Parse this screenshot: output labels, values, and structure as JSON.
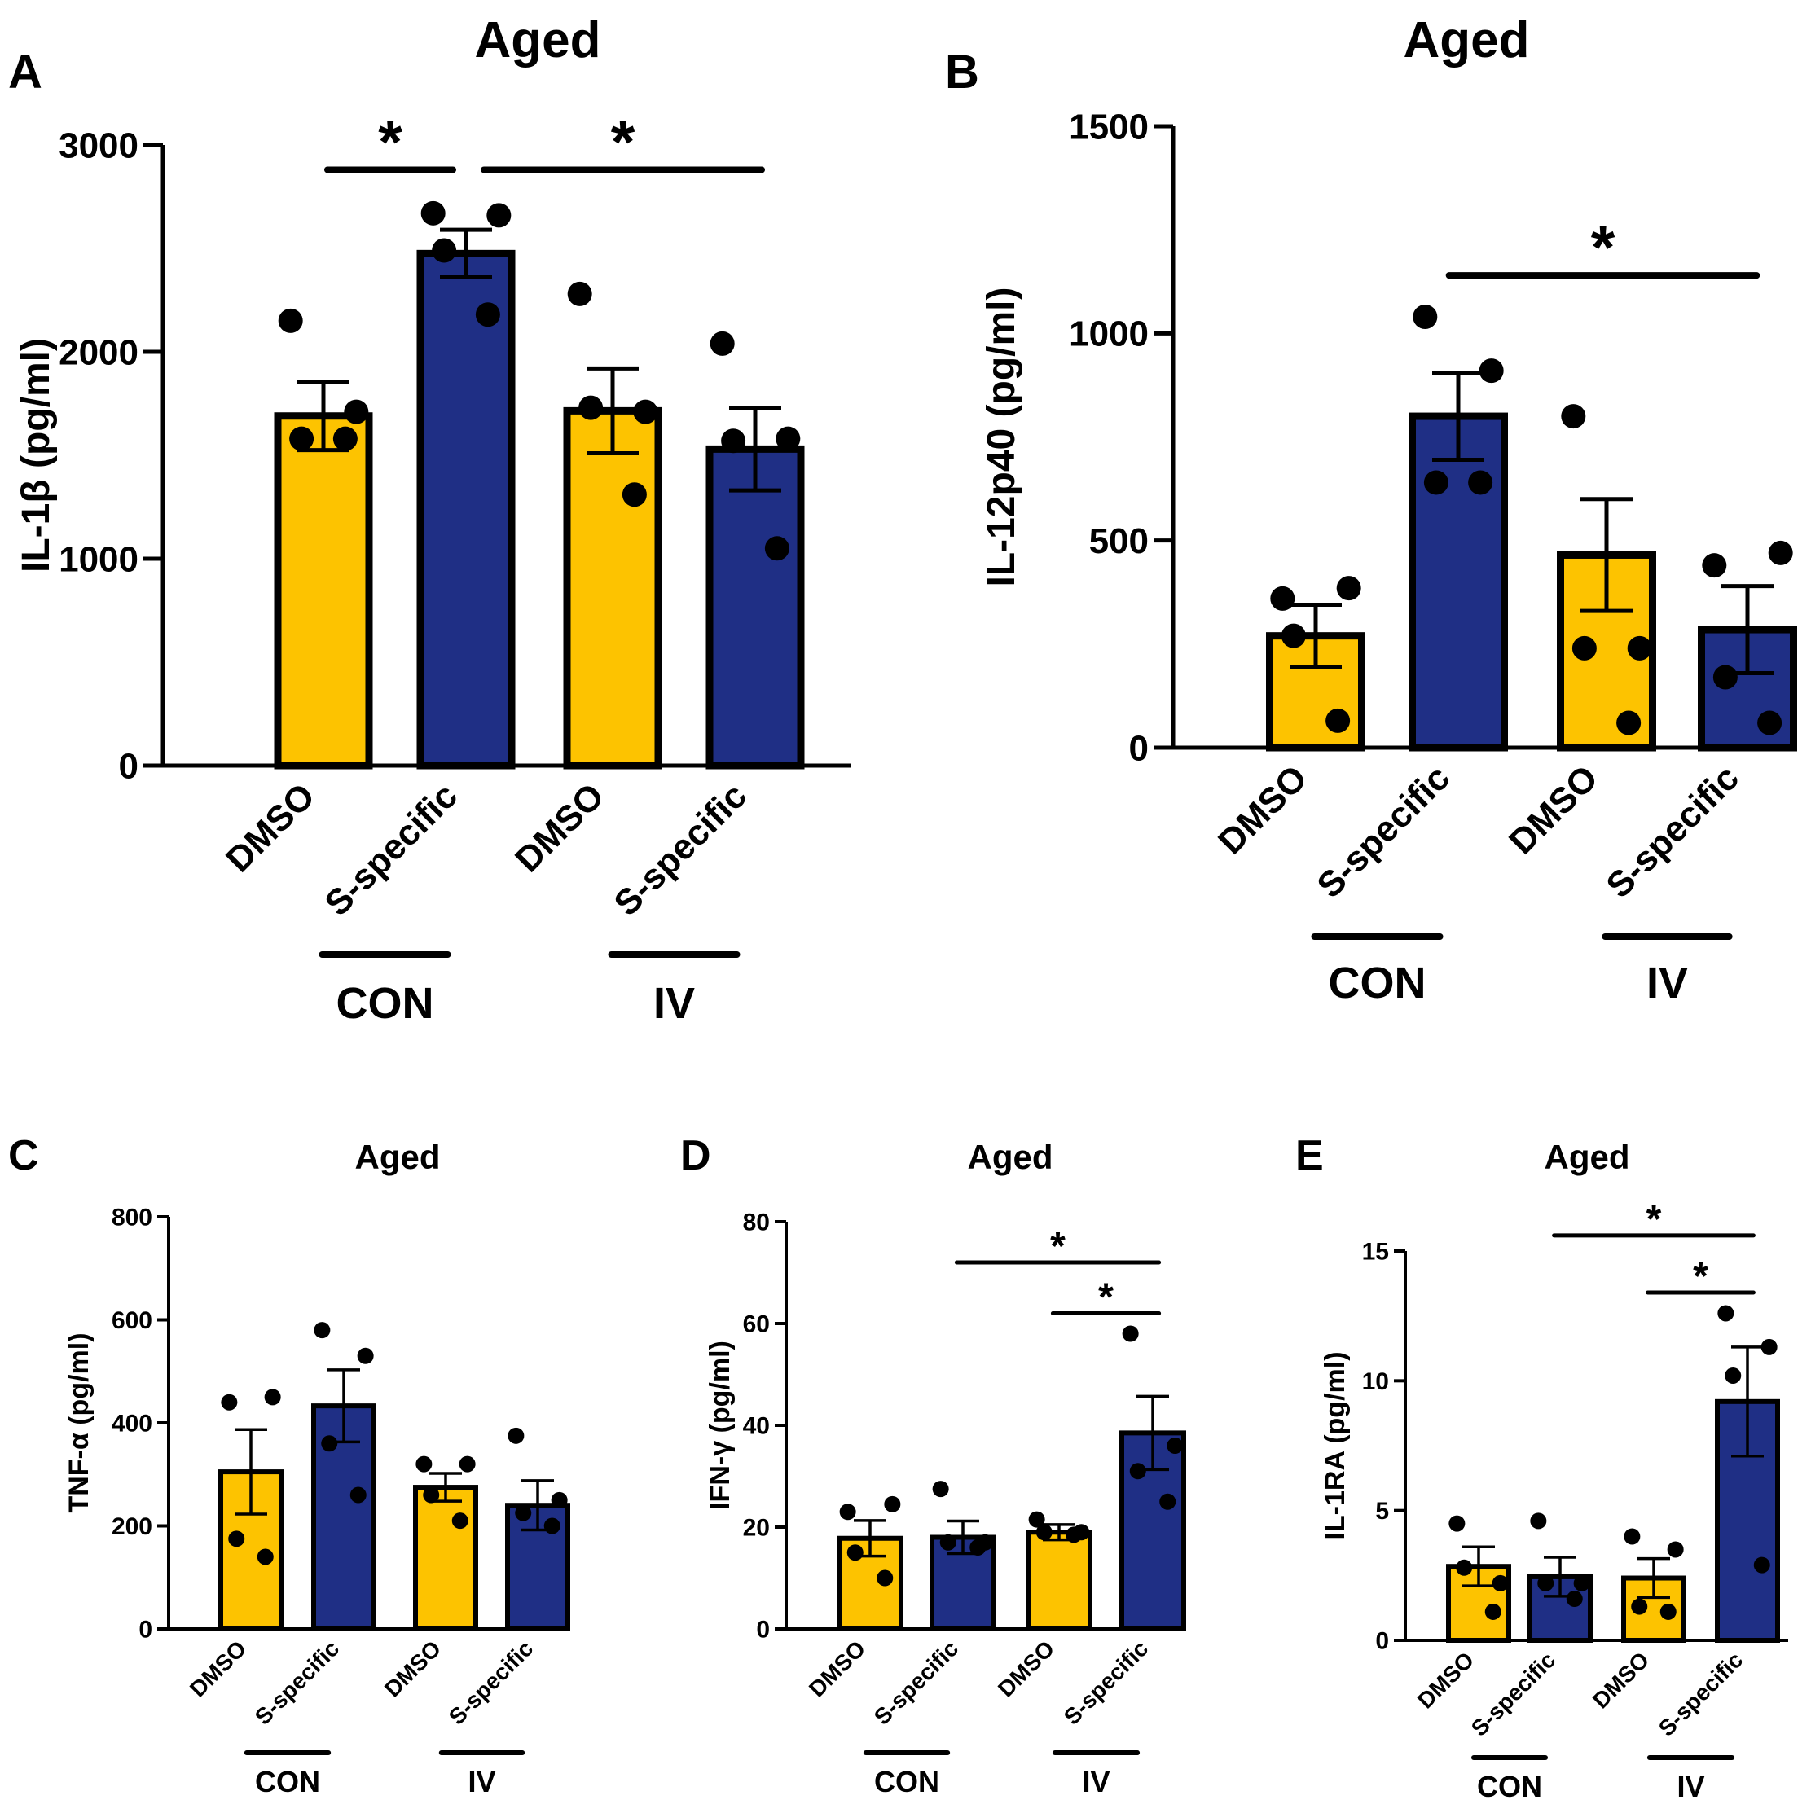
{
  "figure": {
    "colors": {
      "yellow": "#FDC300",
      "blue": "#1F2F85",
      "ink": "#000000"
    }
  },
  "chart_data": [
    {
      "id": "A",
      "type": "bar",
      "panel_label": "A",
      "title": "Aged",
      "ylabel": "IL-1β (pg/ml)",
      "ylim": [
        0,
        3000
      ],
      "yticks": [
        0,
        1000,
        2000,
        3000
      ],
      "categories": [
        "DMSO",
        "S-specific",
        "DMSO",
        "S-specific"
      ],
      "groups": [
        {
          "label": "CON",
          "members": [
            0,
            1
          ]
        },
        {
          "label": "IV",
          "members": [
            2,
            3
          ]
        }
      ],
      "values": [
        1690,
        2475,
        1715,
        1530
      ],
      "sem": [
        165,
        115,
        205,
        200
      ],
      "points": [
        [
          2150,
          1710,
          1580,
          1580
        ],
        [
          2670,
          2660,
          2490,
          2180
        ],
        [
          2280,
          1710,
          1730,
          1310
        ],
        [
          2040,
          1580,
          1570,
          1050
        ]
      ],
      "bar_colors": [
        "yellow",
        "blue",
        "yellow",
        "blue"
      ],
      "significance": [
        {
          "from": 0,
          "to": 1,
          "label": "*",
          "y": 2880
        },
        {
          "from": 1,
          "to": 3,
          "label": "*",
          "y": 2880
        }
      ]
    },
    {
      "id": "B",
      "type": "bar",
      "panel_label": "B",
      "title": "Aged",
      "ylabel": "IL-12p40 (pg/ml)",
      "ylim": [
        0,
        1500
      ],
      "yticks": [
        0,
        500,
        1000,
        1500
      ],
      "categories": [
        "DMSO",
        "S-specific",
        "DMSO",
        "S-specific"
      ],
      "groups": [
        {
          "label": "CON",
          "members": [
            0,
            1
          ]
        },
        {
          "label": "IV",
          "members": [
            2,
            3
          ]
        }
      ],
      "values": [
        270,
        800,
        465,
        285
      ],
      "sem": [
        75,
        105,
        135,
        105
      ],
      "points": [
        [
          360,
          385,
          270,
          65
        ],
        [
          1040,
          910,
          640,
          640
        ],
        [
          800,
          240,
          240,
          60
        ],
        [
          440,
          470,
          170,
          60
        ]
      ],
      "bar_colors": [
        "yellow",
        "blue",
        "yellow",
        "blue"
      ],
      "significance": [
        {
          "from": 1,
          "to": 3,
          "label": "*",
          "y": 1140
        }
      ]
    },
    {
      "id": "C",
      "type": "bar",
      "panel_label": "C",
      "title": "Aged",
      "ylabel": "TNF-α (pg/ml)",
      "ylim": [
        0,
        800
      ],
      "yticks": [
        0,
        200,
        400,
        600,
        800
      ],
      "categories": [
        "DMSO",
        "S-specific",
        "DMSO",
        "S-specific"
      ],
      "groups": [
        {
          "label": "CON",
          "members": [
            0,
            1
          ]
        },
        {
          "label": "IV",
          "members": [
            2,
            3
          ]
        }
      ],
      "values": [
        305,
        433,
        275,
        240
      ],
      "sem": [
        82,
        70,
        27,
        48
      ],
      "points": [
        [
          440,
          450,
          175,
          140
        ],
        [
          580,
          530,
          360,
          260
        ],
        [
          320,
          320,
          260,
          210
        ],
        [
          375,
          250,
          225,
          200
        ]
      ],
      "bar_colors": [
        "yellow",
        "blue",
        "yellow",
        "blue"
      ],
      "significance": []
    },
    {
      "id": "D",
      "type": "bar",
      "panel_label": "D",
      "title": "Aged",
      "ylabel": "IFN-γ (pg/ml)",
      "ylim": [
        0,
        80
      ],
      "yticks": [
        0,
        20,
        40,
        60,
        80
      ],
      "categories": [
        "DMSO",
        "S-specific",
        "DMSO",
        "S-specific"
      ],
      "groups": [
        {
          "label": "CON",
          "members": [
            0,
            1
          ]
        },
        {
          "label": "IV",
          "members": [
            2,
            3
          ]
        }
      ],
      "values": [
        17.8,
        18.0,
        19.0,
        38.5
      ],
      "sem": [
        3.5,
        3.2,
        1.5,
        7.2
      ],
      "points": [
        [
          23,
          24.5,
          15,
          10
        ],
        [
          27.5,
          17,
          17,
          16
        ],
        [
          21.5,
          19,
          19,
          18.5
        ],
        [
          58,
          36,
          31,
          25
        ]
      ],
      "bar_colors": [
        "yellow",
        "blue",
        "yellow",
        "blue"
      ],
      "significance": [
        {
          "from": 1,
          "to": 3,
          "label": "*",
          "y": 72
        },
        {
          "from": 2,
          "to": 3,
          "label": "*",
          "y": 62
        }
      ]
    },
    {
      "id": "E",
      "type": "bar",
      "panel_label": "E",
      "title": "Aged",
      "ylabel": "IL-1RA (pg/ml)",
      "ylim": [
        0,
        15
      ],
      "yticks": [
        0,
        5,
        10,
        15
      ],
      "categories": [
        "DMSO",
        "S-specific",
        "DMSO",
        "S-specific"
      ],
      "groups": [
        {
          "label": "CON",
          "members": [
            0,
            1
          ]
        },
        {
          "label": "IV",
          "members": [
            2,
            3
          ]
        }
      ],
      "values": [
        2.85,
        2.45,
        2.4,
        9.2
      ],
      "sem": [
        0.75,
        0.75,
        0.75,
        2.1
      ],
      "points": [
        [
          4.5,
          2.2,
          2.8,
          1.1
        ],
        [
          4.6,
          2.2,
          2.2,
          1.6
        ],
        [
          4.0,
          3.5,
          1.3,
          1.1
        ],
        [
          12.6,
          11.3,
          10.2,
          2.9
        ]
      ],
      "bar_colors": [
        "yellow",
        "blue",
        "yellow",
        "blue"
      ],
      "significance": [
        {
          "from": 1,
          "to": 3,
          "label": "*",
          "y": 15.6
        },
        {
          "from": 2,
          "to": 3,
          "label": "*",
          "y": 13.4
        }
      ]
    }
  ]
}
